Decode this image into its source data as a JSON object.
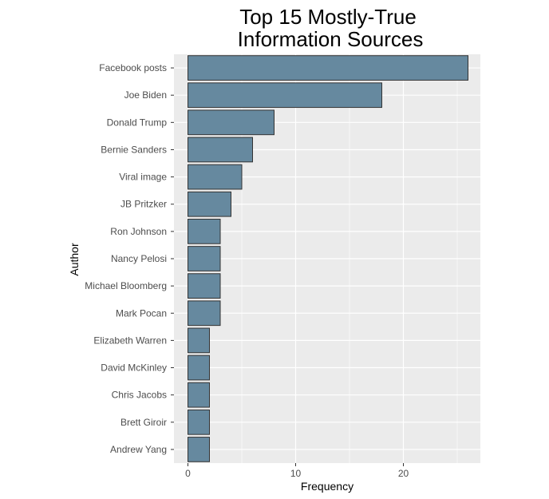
{
  "chart_data": {
    "type": "bar",
    "orientation": "horizontal",
    "title": [
      "Top 15 Mostly-True",
      "Information Sources"
    ],
    "xlabel": "Frequency",
    "ylabel": "Author",
    "categories": [
      "Facebook posts",
      "Joe Biden",
      "Donald Trump",
      "Bernie Sanders",
      "Viral image",
      "JB Pritzker",
      "Ron Johnson",
      "Nancy Pelosi",
      "Michael Bloomberg",
      "Mark Pocan",
      "Elizabeth Warren",
      "David McKinley",
      "Chris Jacobs",
      "Brett Giroir",
      "Andrew Yang"
    ],
    "values": [
      26,
      18,
      8,
      6,
      5,
      4,
      3,
      3,
      3,
      3,
      2,
      2,
      2,
      2,
      2
    ],
    "xlim": [
      0,
      27.3
    ],
    "xticks": [
      0,
      10,
      20
    ],
    "xtick_labels": [
      "0",
      "10",
      "20"
    ],
    "grid": true,
    "bar_color": "#66899f",
    "bar_outline": "#333333",
    "panel_background": "#ebebeb",
    "grid_color": "#ffffff"
  }
}
